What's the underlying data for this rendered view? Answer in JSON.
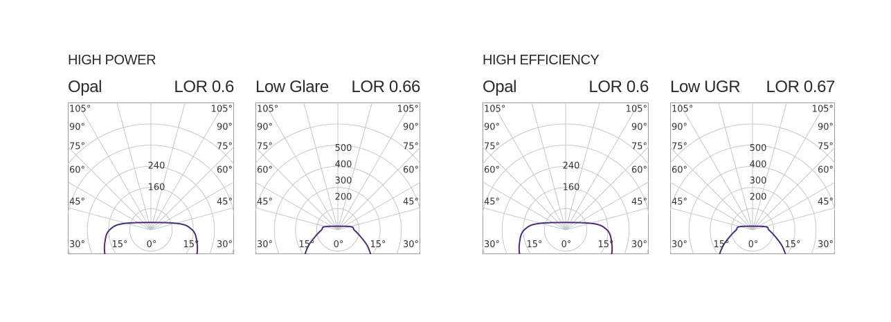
{
  "groups": [
    {
      "title": "HIGH POWER"
    },
    {
      "title": "HIGH EFFICIENCY"
    }
  ],
  "colors": {
    "curve": "#4b2a7a",
    "grid": "#c6c6c6",
    "frame": "#9a9a9a",
    "text": "#333333"
  },
  "chart_data": [
    {
      "type": "polar",
      "group": "HIGH POWER",
      "title": "Opal",
      "subtitle": "LOR 0.6",
      "angle_labels_left": [
        "105°",
        "90°",
        "75°",
        "60°",
        "45°",
        "30°",
        "15°"
      ],
      "angle_labels_right": [
        "105°",
        "90°",
        "75°",
        "60°",
        "45°",
        "30°",
        "15°"
      ],
      "zero_label": "0°",
      "radial_ticks": [
        {
          "value": 160,
          "label": "160"
        },
        {
          "value": 240,
          "label": "240"
        }
      ],
      "radial_max": 400,
      "curve": {
        "angles": [
          0,
          15,
          30,
          45,
          60,
          75,
          90,
          105
        ],
        "values": [
          222,
          222,
          220,
          213,
          199,
          180,
          156,
          97
        ]
      }
    },
    {
      "type": "polar",
      "group": "HIGH POWER",
      "title": "Low Glare",
      "subtitle": "LOR 0.66",
      "angle_labels_left": [
        "105°",
        "90°",
        "75°",
        "60°",
        "45°",
        "30°",
        "15°"
      ],
      "angle_labels_right": [
        "105°",
        "90°",
        "75°",
        "60°",
        "45°",
        "30°",
        "15°"
      ],
      "zero_label": "0°",
      "radial_ticks": [
        {
          "value": 200,
          "label": "200"
        },
        {
          "value": 300,
          "label": "300"
        },
        {
          "value": 400,
          "label": "400"
        },
        {
          "value": 500,
          "label": "500"
        }
      ],
      "radial_max": 650,
      "curve": {
        "angles": [
          0,
          15,
          30,
          45,
          60,
          75,
          90,
          105
        ],
        "values": [
          460,
          440,
          385,
          300,
          215,
          140,
          100,
          78
        ]
      }
    },
    {
      "type": "polar",
      "group": "HIGH EFFICIENCY",
      "title": "Opal",
      "subtitle": "LOR 0.6",
      "angle_labels_left": [
        "105°",
        "90°",
        "75°",
        "60°",
        "45°",
        "30°",
        "15°"
      ],
      "angle_labels_right": [
        "105°",
        "90°",
        "75°",
        "60°",
        "45°",
        "30°",
        "15°"
      ],
      "zero_label": "0°",
      "radial_ticks": [
        {
          "value": 160,
          "label": "160"
        },
        {
          "value": 240,
          "label": "240"
        }
      ],
      "radial_max": 400,
      "curve": {
        "angles": [
          0,
          15,
          30,
          45,
          60,
          75,
          90,
          105
        ],
        "values": [
          222,
          222,
          220,
          213,
          199,
          180,
          156,
          97
        ]
      }
    },
    {
      "type": "polar",
      "group": "HIGH EFFICIENCY",
      "title": "Low UGR",
      "subtitle": "LOR 0.67",
      "angle_labels_left": [
        "105°",
        "90°",
        "75°",
        "60°",
        "45°",
        "30°",
        "15°"
      ],
      "angle_labels_right": [
        "105°",
        "90°",
        "75°",
        "60°",
        "45°",
        "30°",
        "15°"
      ],
      "zero_label": "0°",
      "radial_ticks": [
        {
          "value": 200,
          "label": "200"
        },
        {
          "value": 300,
          "label": "300"
        },
        {
          "value": 400,
          "label": "400"
        },
        {
          "value": 500,
          "label": "500"
        }
      ],
      "radial_max": 650,
      "curve": {
        "angles": [
          0,
          15,
          30,
          45,
          60,
          75,
          90,
          105
        ],
        "values": [
          470,
          450,
          395,
          305,
          215,
          140,
          100,
          78
        ]
      }
    }
  ]
}
